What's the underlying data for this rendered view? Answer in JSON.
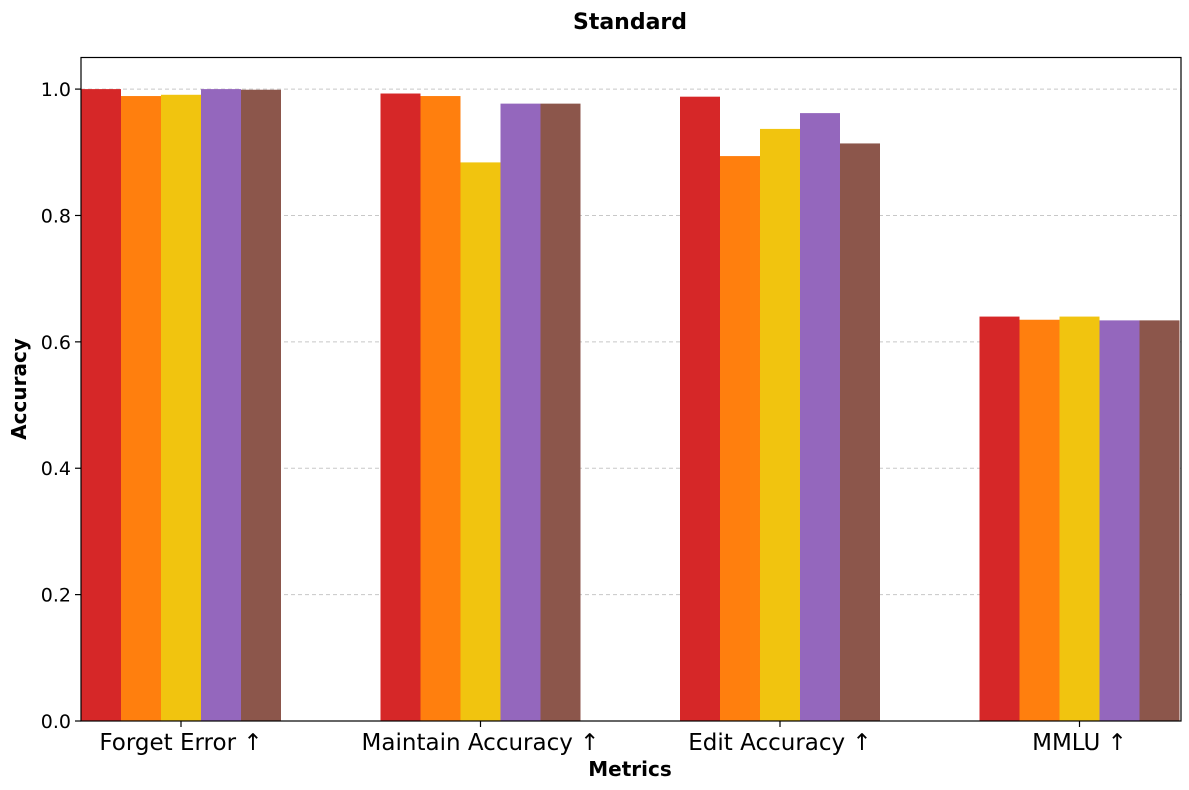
{
  "chart_data": {
    "type": "bar",
    "title": "Standard",
    "xlabel": "Metrics",
    "ylabel": "Accuracy",
    "categories": [
      "Forget Error ↑",
      "Maintain Accuracy ↑",
      "Edit Accuracy ↑",
      "MMLU ↑"
    ],
    "series": [
      {
        "color": "#d62728",
        "values": [
          1.0,
          0.993,
          0.988,
          0.64
        ]
      },
      {
        "color": "#ff7f0e",
        "values": [
          0.989,
          0.989,
          0.894,
          0.635
        ]
      },
      {
        "color": "#f1c40f",
        "values": [
          0.991,
          0.884,
          0.937,
          0.64
        ]
      },
      {
        "color": "#9467bd",
        "values": [
          1.0,
          0.977,
          0.962,
          0.634
        ]
      },
      {
        "color": "#8c564b",
        "values": [
          0.999,
          0.977,
          0.914,
          0.634
        ]
      }
    ],
    "ylim": [
      0,
      1.05
    ],
    "yticks": [
      "0.0",
      "0.2",
      "0.4",
      "0.6",
      "0.8",
      "1.0"
    ],
    "grid": "y-dashed",
    "legend": "none"
  }
}
